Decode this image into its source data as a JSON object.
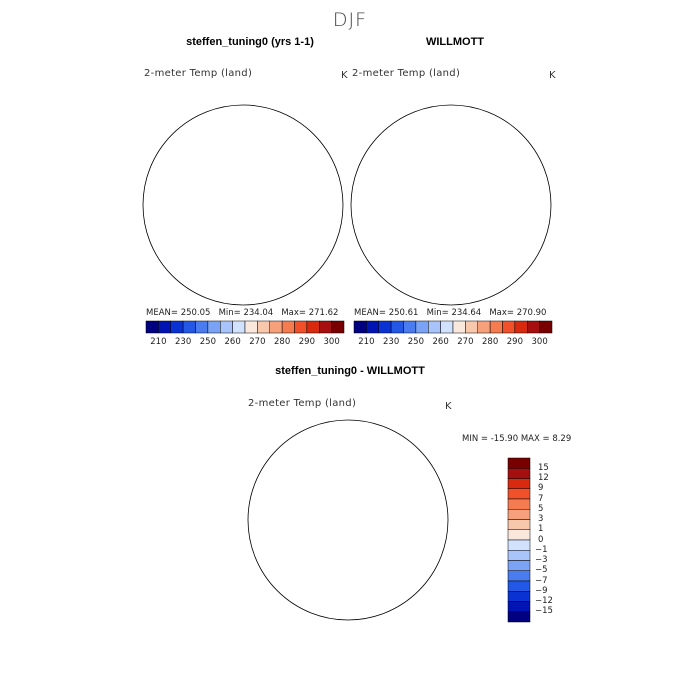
{
  "figure": {
    "season": "DJF"
  },
  "panels": [
    {
      "title": "steffen_tuning0 (yrs 1-1)",
      "variable": "2-meter Temp (land)",
      "units": "K",
      "mean_label": "MEAN= 250.05",
      "min_label": "Min= 234.04",
      "max_label": "Max= 271.62"
    },
    {
      "title": "WILLMOTT",
      "variable": "2-meter Temp (land)",
      "units": "K",
      "mean_label": "MEAN= 250.61",
      "min_label": "Min= 234.64",
      "max_label": "Max= 270.90"
    },
    {
      "title": "steffen_tuning0 - WILLMOTT",
      "variable": "2-meter Temp (land)",
      "units": "K",
      "minmax_label": "MIN = -15.90  MAX =   8.29"
    }
  ],
  "colorbars": {
    "absolute": {
      "colors": [
        "#000080",
        "#0014b4",
        "#0a32d2",
        "#2358e6",
        "#4a7cf0",
        "#7aa2f5",
        "#a8c4fa",
        "#d2e2fc",
        "#fbe8dc",
        "#f8c8ac",
        "#f6a07c",
        "#f47c50",
        "#f0502a",
        "#d82a0e",
        "#a50f0f",
        "#780000"
      ],
      "tick_labels": [
        "210",
        "230",
        "250",
        "260",
        "270",
        "280",
        "290",
        "300"
      ]
    },
    "difference": {
      "colors": [
        "#000080",
        "#0014b4",
        "#0a32d2",
        "#2358e6",
        "#4a7cf0",
        "#7aa2f5",
        "#a8c4fa",
        "#d2e2fc",
        "#fbe8dc",
        "#f8c8ac",
        "#f6a07c",
        "#f47c50",
        "#f0502a",
        "#d82a0e",
        "#a50f0f",
        "#780000"
      ],
      "tick_labels": [
        "15",
        "12",
        "9",
        "7",
        "5",
        "3",
        "1",
        "0",
        "−1",
        "−3",
        "−5",
        "−7",
        "−9",
        "−12",
        "−15"
      ]
    }
  }
}
